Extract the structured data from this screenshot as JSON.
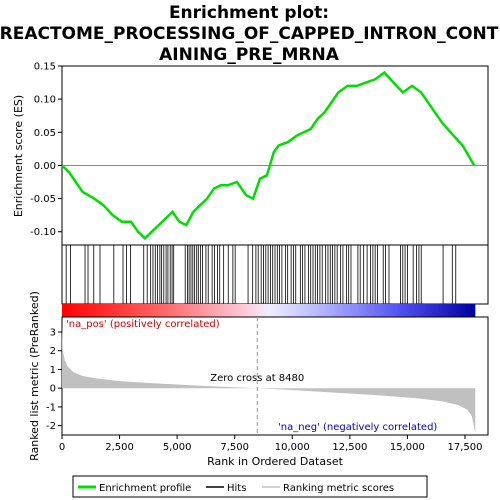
{
  "chart_data": {
    "type": "line",
    "title_lines": [
      "Enrichment plot:",
      "REACTOME_PROCESSING_OF_CAPPED_INTRON_CONT",
      "AINING_PRE_MRNA"
    ],
    "colors": {
      "enrichment_line": "#00dd00",
      "hits": "#000000",
      "metric_fill": "#c0c0c0",
      "zero_line": "#888888",
      "pos_text": "#cc0000",
      "neg_text": "#0000cc"
    },
    "top_panel": {
      "ylabel": "Enrichment score (ES)",
      "ylim": [
        -0.12,
        0.15
      ],
      "yticks": [
        -0.1,
        -0.05,
        0.0,
        0.05,
        0.1,
        0.15
      ],
      "ytick_labels": [
        "-0.10",
        "-0.05",
        "0.00",
        "0.05",
        "0.10",
        "0.15"
      ],
      "series": [
        {
          "x": [
            0,
            300,
            900,
            1400,
            1800,
            2200,
            2600,
            3000,
            3300,
            3600,
            3900,
            4200,
            4500,
            4800,
            5100,
            5400,
            5700,
            6000,
            6300,
            6600,
            6900,
            7200,
            7600,
            8000,
            8300,
            8600,
            8900,
            9200,
            9400,
            9800,
            10200,
            10500,
            10800,
            11100,
            11400,
            11700,
            12000,
            12400,
            12800,
            13200,
            13600,
            14000,
            14400,
            14800,
            15200,
            15600,
            16000,
            16500,
            17000,
            17400,
            17900
          ],
          "y": [
            0.0,
            -0.01,
            -0.04,
            -0.05,
            -0.06,
            -0.075,
            -0.085,
            -0.085,
            -0.1,
            -0.11,
            -0.1,
            -0.09,
            -0.08,
            -0.07,
            -0.085,
            -0.09,
            -0.07,
            -0.06,
            -0.05,
            -0.035,
            -0.03,
            -0.03,
            -0.025,
            -0.045,
            -0.05,
            -0.02,
            -0.015,
            0.02,
            0.03,
            0.035,
            0.045,
            0.05,
            0.055,
            0.07,
            0.08,
            0.095,
            0.11,
            0.12,
            0.12,
            0.125,
            0.13,
            0.14,
            0.125,
            0.11,
            0.12,
            0.11,
            0.09,
            0.065,
            0.045,
            0.03,
            0.0
          ]
        }
      ]
    },
    "hits_x": [
      180,
      370,
      1000,
      1130,
      1380,
      1650,
      2250,
      2650,
      2800,
      2980,
      3550,
      3700,
      3850,
      3950,
      4050,
      4150,
      4250,
      4320,
      4420,
      4520,
      4600,
      4700,
      4780,
      4850,
      5350,
      5450,
      5520,
      5600,
      5680,
      5760,
      5850,
      5920,
      6020,
      6100,
      6250,
      6350,
      6520,
      6620,
      6750,
      6850,
      7020,
      7220,
      7420,
      7520,
      8080,
      8280,
      8420,
      8520,
      8650,
      8750,
      8850,
      8950,
      9050,
      9150,
      9250,
      9350,
      9450,
      9550,
      9700,
      9800,
      9950,
      10050,
      10150,
      10350,
      10450,
      10550,
      10700,
      10800,
      10900,
      11000,
      11100,
      11200,
      11300,
      11450,
      11550,
      11650,
      11750,
      11850,
      11950,
      12100,
      12200,
      12350,
      12450,
      12550,
      12850,
      12950,
      13100,
      13250,
      13400,
      13500,
      13600,
      13700,
      13950,
      14050,
      14200,
      14700,
      14800,
      14900,
      15000,
      15250,
      15400,
      15500,
      15600,
      16550,
      16950,
      17100
    ],
    "bottom_panel": {
      "ylabel": "Ranked list metric (PreRanked)",
      "ylim": [
        -2.5,
        3.8
      ],
      "yticks": [
        -2,
        -1,
        0,
        1,
        2,
        3
      ],
      "ytick_labels": [
        "-2",
        "-1",
        "0",
        "1",
        "2",
        "3"
      ],
      "metric_x": [
        0,
        40,
        120,
        250,
        500,
        900,
        1500,
        2500,
        4000,
        6000,
        8000,
        8480,
        10000,
        12000,
        14000,
        15500,
        16500,
        17200,
        17600,
        17800,
        17950
      ],
      "metric_y": [
        3.3,
        2.0,
        1.5,
        1.15,
        0.85,
        0.65,
        0.52,
        0.38,
        0.26,
        0.13,
        0.02,
        0.0,
        -0.1,
        -0.25,
        -0.4,
        -0.55,
        -0.7,
        -0.9,
        -1.15,
        -1.5,
        -2.4
      ]
    },
    "xlabel": "Rank in Ordered Dataset",
    "xlim": [
      0,
      18500
    ],
    "xticks": [
      0,
      2500,
      5000,
      7500,
      10000,
      12500,
      15000,
      17500
    ],
    "xtick_labels": [
      "0",
      "2,500",
      "5,000",
      "7,500",
      "10,000",
      "12,500",
      "15,000",
      "17,500"
    ],
    "zero_cross": 8480,
    "zero_cross_label": "Zero cross at 8480",
    "pos_label": "'na_pos' (positively correlated)",
    "neg_label": "'na_neg' (negatively correlated)",
    "legend": [
      "Enrichment profile",
      "Hits",
      "Ranking metric scores"
    ]
  }
}
